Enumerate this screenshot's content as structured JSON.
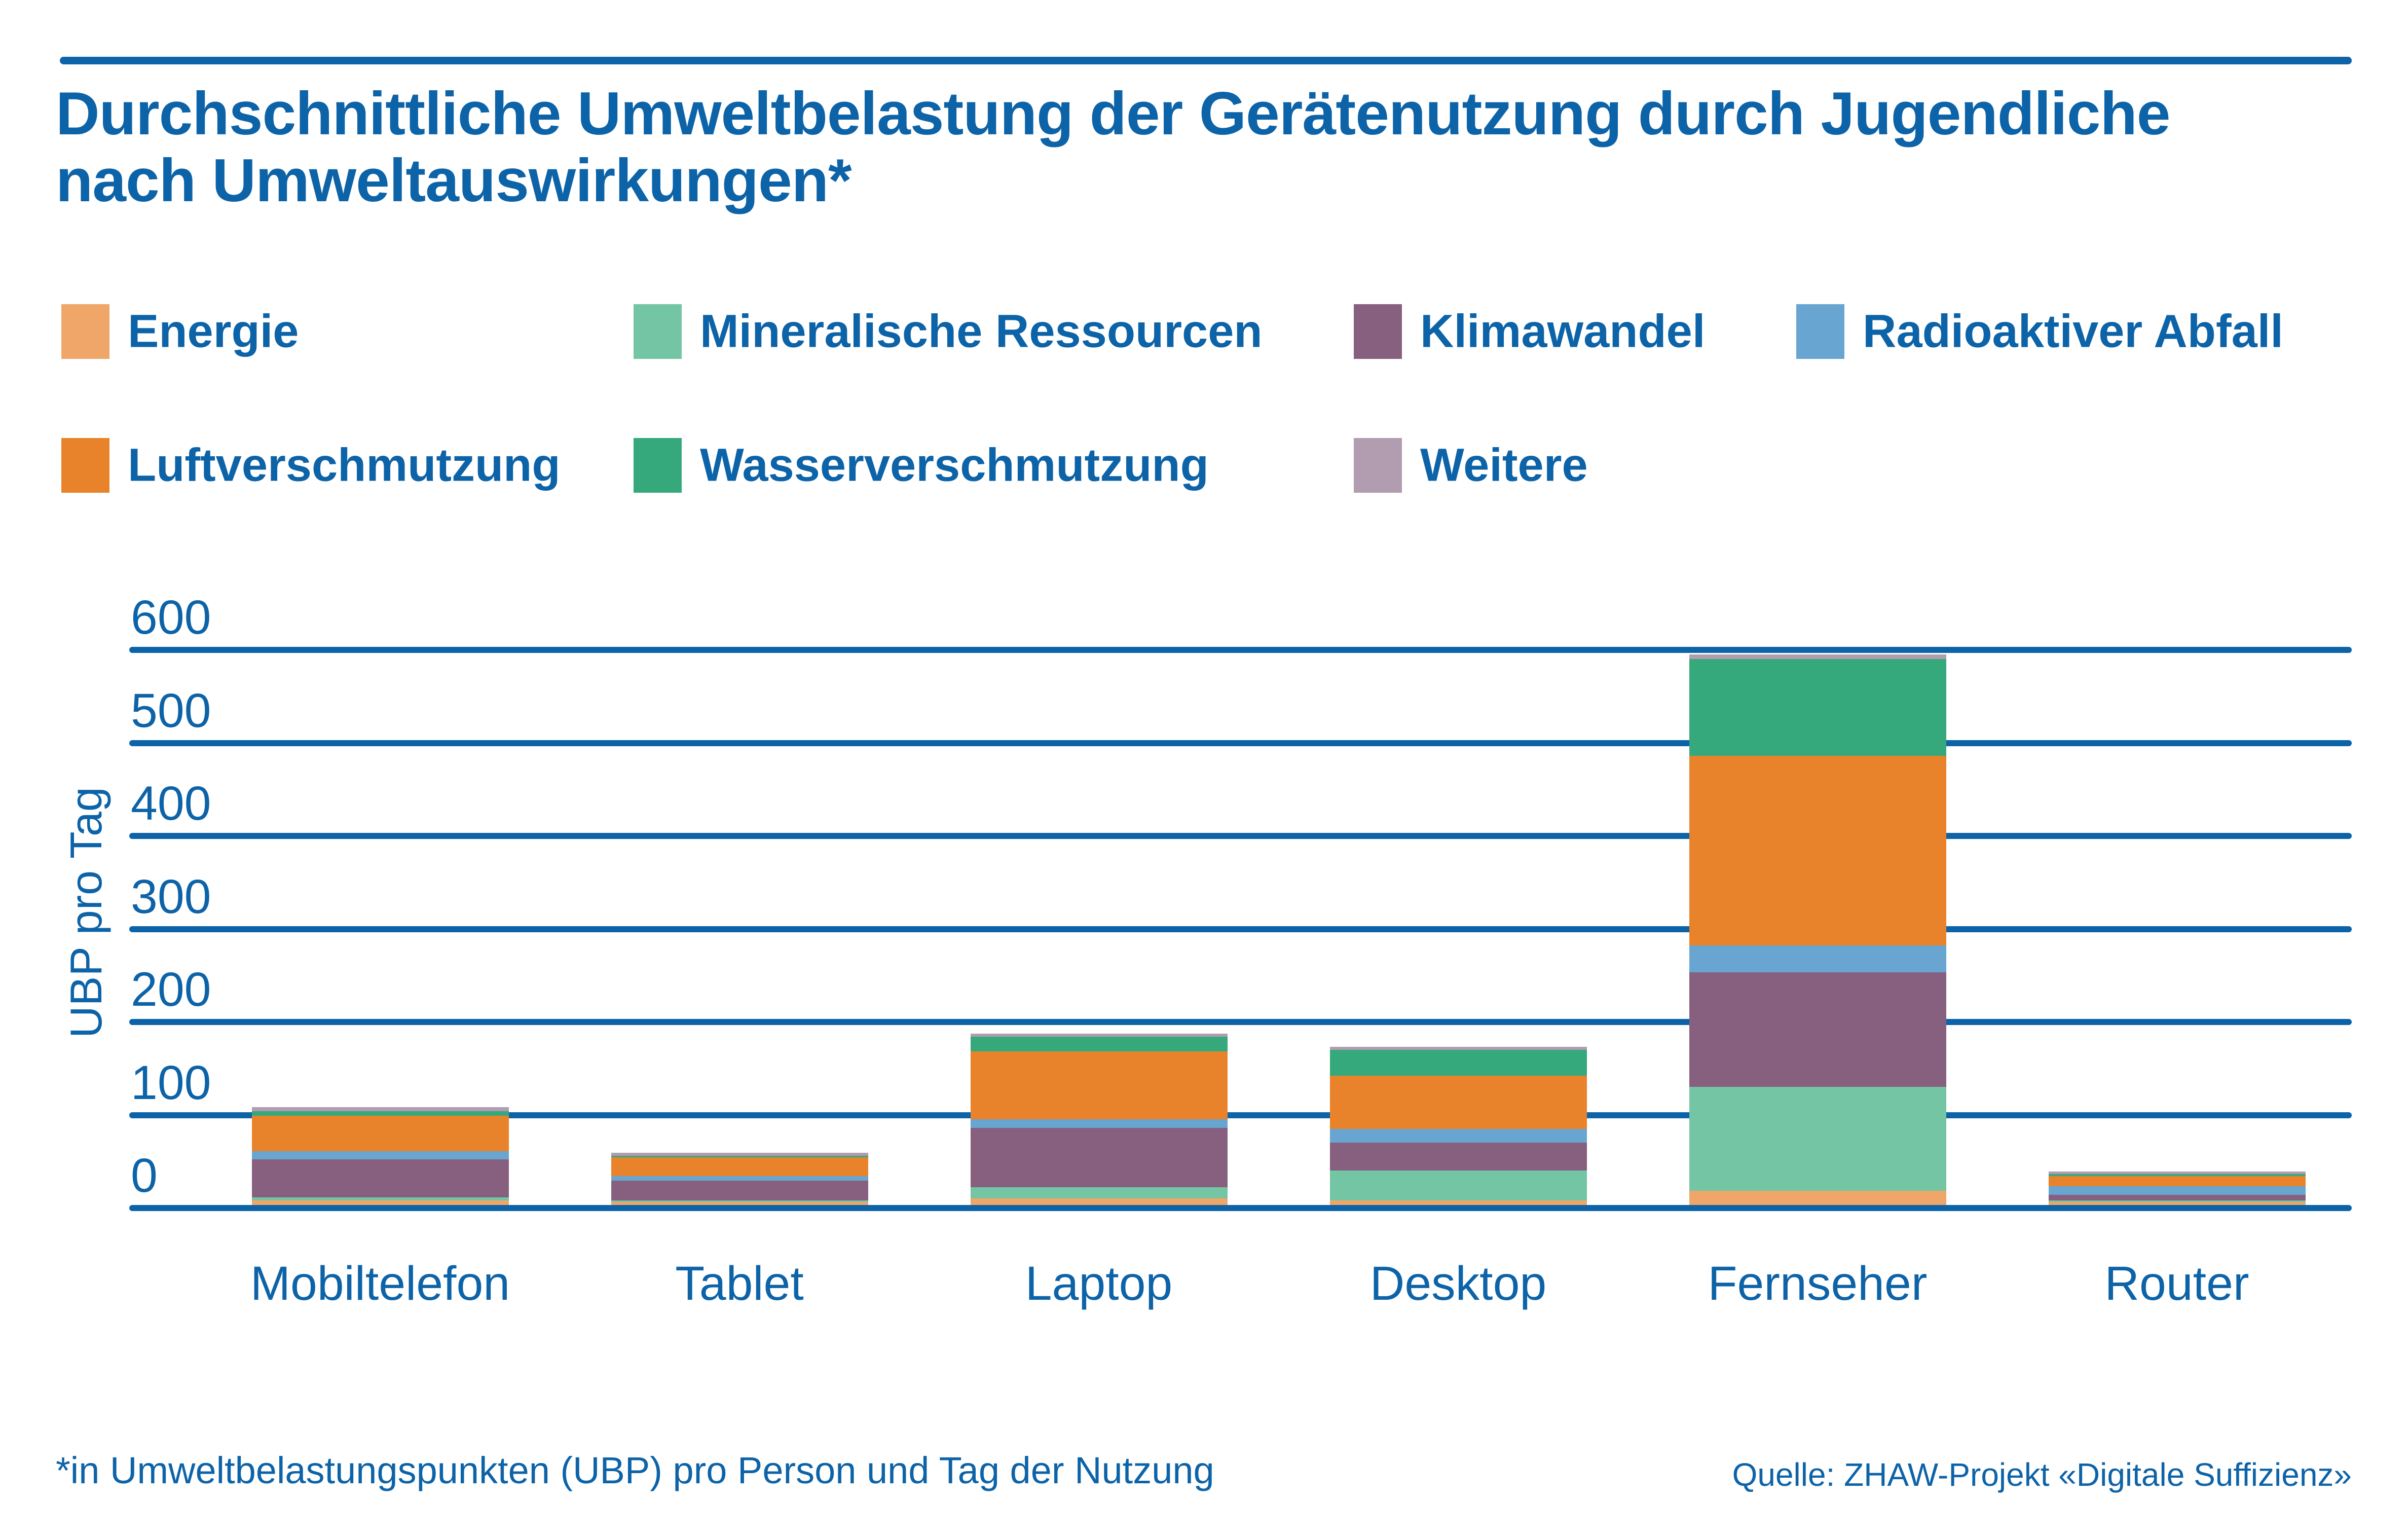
{
  "title": {
    "line1": "Durchschnittliche Umweltbelastung der Gerätenutzung durch Jugendliche",
    "line2": "nach Umweltauswirkungen*"
  },
  "colors": {
    "text_blue": "#0d63a8",
    "gridline_blue": "#0d63a8",
    "Energie": "#f0a569",
    "Mineralische Ressourcen": "#74c5a4",
    "Klimawandel": "#86607e",
    "Radioaktiver Abfall": "#68a5d1",
    "Luftverschmutzung": "#e8832b",
    "Wasserverschmutzung": "#35a97c",
    "Weitere": "#b29cb0"
  },
  "legend": {
    "rows": [
      [
        "Energie",
        "Mineralische Ressourcen",
        "Klimawandel",
        "Radioaktiver Abfall"
      ],
      [
        "Luftverschmutzung",
        "Wasserverschmutzung",
        "Weitere"
      ]
    ]
  },
  "y_axis": {
    "label": "UBP pro Tag",
    "ticks": [
      0,
      100,
      200,
      300,
      400,
      500,
      600
    ]
  },
  "footnote": "*in Umweltbelastungspunkten (UBP) pro Person und Tag der Nutzung",
  "source": "Quelle: ZHAW-Projekt «Digitale Suffizienz»",
  "chart_data": {
    "type": "bar",
    "stacked": true,
    "title": "Durchschnittliche Umweltbelastung der Gerätenutzung durch Jugendliche nach Umweltauswirkungen*",
    "xlabel": "",
    "ylabel": "UBP pro Tag",
    "ylim": [
      0,
      600
    ],
    "grid": true,
    "legend_position": "top",
    "categories": [
      "Mobiltelefon",
      "Tablet",
      "Laptop",
      "Desktop",
      "Fernseher",
      "Router"
    ],
    "series": [
      {
        "name": "Energie",
        "values": [
          5,
          3,
          7,
          5,
          15,
          3
        ]
      },
      {
        "name": "Mineralische Ressourcen",
        "values": [
          3,
          2,
          12,
          32,
          112,
          2
        ]
      },
      {
        "name": "Klimawandel",
        "values": [
          41,
          21,
          64,
          30,
          123,
          6
        ]
      },
      {
        "name": "Radioaktiver Abfall",
        "values": [
          9,
          5,
          9,
          15,
          29,
          9
        ]
      },
      {
        "name": "Luftverschmutzung",
        "values": [
          38,
          20,
          73,
          57,
          204,
          11
        ]
      },
      {
        "name": "Wasserverschmutzung",
        "values": [
          5,
          2,
          16,
          28,
          104,
          2
        ]
      },
      {
        "name": "Weitere",
        "values": [
          4,
          3,
          3,
          3,
          5,
          3
        ]
      }
    ],
    "totals": [
      105,
      56,
      184,
      170,
      592,
      36
    ]
  }
}
